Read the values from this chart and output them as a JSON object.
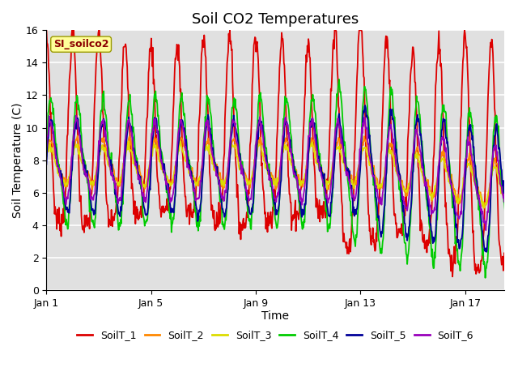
{
  "title": "Soil CO2 Temperatures",
  "xlabel": "Time",
  "ylabel": "Soil Temperature (C)",
  "ylim": [
    0,
    16
  ],
  "yticks": [
    0,
    2,
    4,
    6,
    8,
    10,
    12,
    14,
    16
  ],
  "xtick_labels": [
    "Jan 1",
    "Jan 5",
    "Jan 9",
    "Jan 13",
    "Jan 17"
  ],
  "xtick_positions": [
    0,
    4,
    8,
    12,
    16
  ],
  "total_days": 18,
  "n_points": 864,
  "series_colors": [
    "#dd0000",
    "#ff8800",
    "#dddd00",
    "#00cc00",
    "#000099",
    "#9900bb"
  ],
  "series_names": [
    "SoilT_1",
    "SoilT_2",
    "SoilT_3",
    "SoilT_4",
    "SoilT_5",
    "SoilT_6"
  ],
  "legend_label": "SI_soilco2",
  "bg_color": "#e0e0e0",
  "fig_bg": "#ffffff",
  "grid_color": "#ffffff",
  "title_fontsize": 13,
  "axis_label_fontsize": 10,
  "tick_fontsize": 9,
  "linewidth": 1.3
}
